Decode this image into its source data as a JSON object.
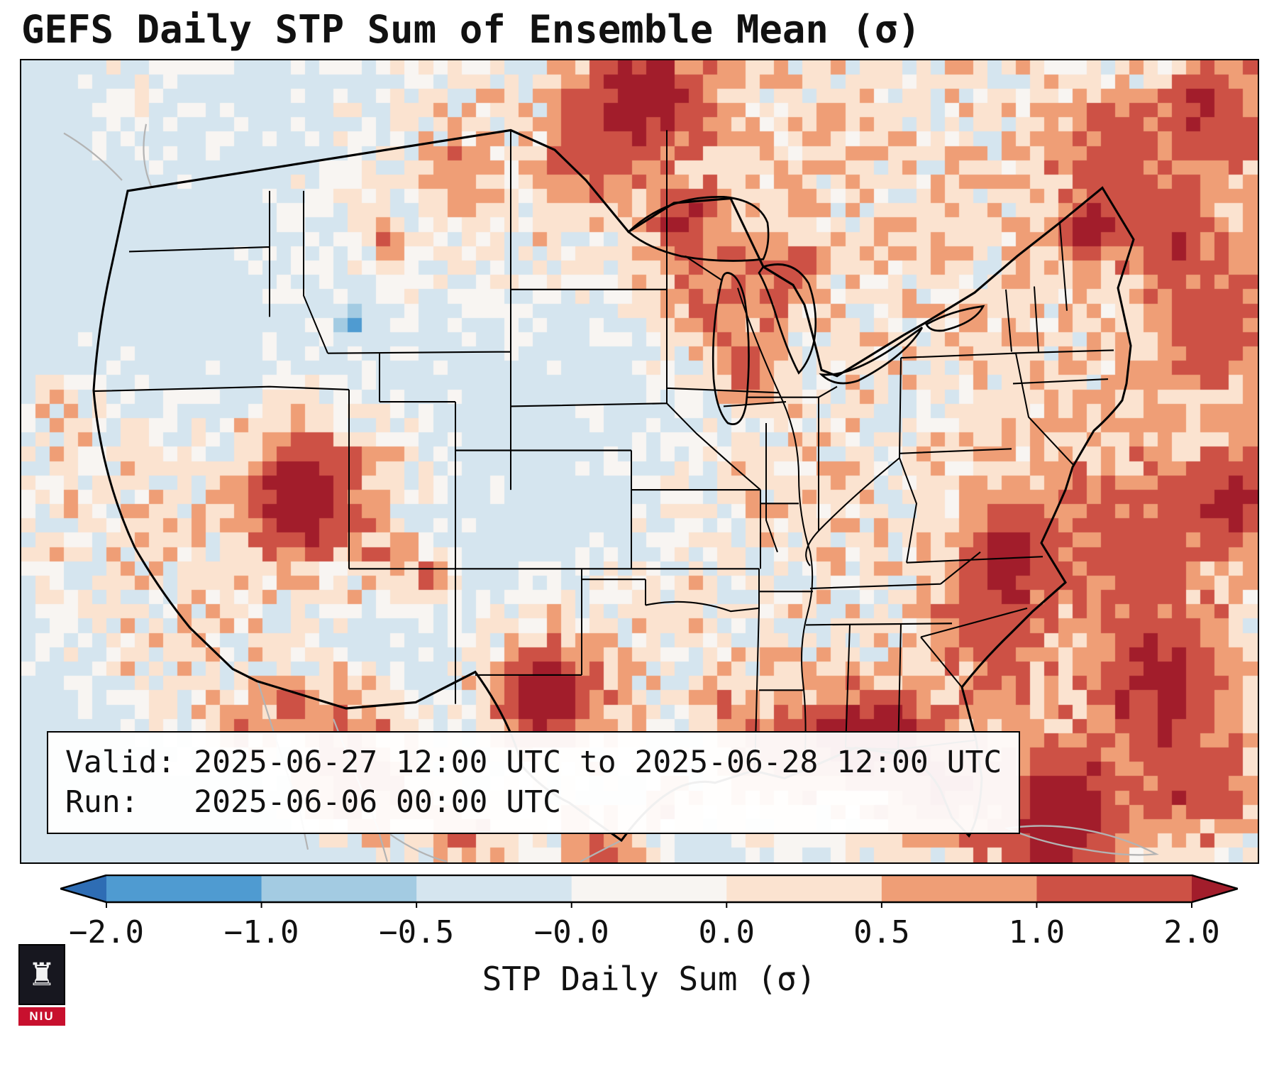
{
  "title": "GEFS Daily STP Sum of Ensemble Mean (σ)",
  "info_box": {
    "valid_line": "Valid: 2025-06-27 12:00 UTC to 2025-06-28 12:00 UTC",
    "run_line": "Run:   2025-06-06 00:00 UTC"
  },
  "logo": {
    "text": "NIU",
    "shield_color": "#17171f",
    "accent_color": "#c8102e",
    "icon": "castle-icon"
  },
  "chart_data": {
    "type": "heatmap",
    "title": "GEFS Daily STP Sum of Ensemble Mean (σ)",
    "region_depicted": "Continental United States and surrounding areas",
    "valid": "2025-06-27 12:00 UTC to 2025-06-28 12:00 UTC",
    "run": "2025-06-06 00:00 UTC",
    "colorbar_label": "STP Daily Sum (σ)",
    "tick_labels": [
      "−2.0",
      "−1.0",
      "−0.5",
      "−0.0",
      "0.0",
      "0.5",
      "1.0",
      "2.0"
    ],
    "boundaries": [
      -2.0,
      -1.0,
      -0.5,
      -0.05,
      0.05,
      0.5,
      1.0,
      2.0
    ],
    "segment_colors": [
      "#4f9bd1",
      "#a3cbe2",
      "#d5e5ef",
      "#f8f5f2",
      "#fbe3d0",
      "#ef9e76",
      "#cd5145"
    ],
    "under_color": "#2e6db4",
    "over_color": "#a21d2b",
    "background_value": -0.2,
    "noise_amp": 0.13,
    "grid": {
      "cols": 87,
      "rows": 56
    },
    "hotspot_format": [
      "fx",
      "fy",
      "radius_frac",
      "amplitude_sigma"
    ],
    "hotspots": [
      [
        0.09,
        0.6,
        0.1,
        0.24
      ],
      [
        0.13,
        0.71,
        0.09,
        0.24
      ],
      [
        0.05,
        0.52,
        0.07,
        0.22
      ],
      [
        0.16,
        0.79,
        0.06,
        0.22
      ],
      [
        0.1,
        0.04,
        0.05,
        0.22
      ],
      [
        0.03,
        0.45,
        0.05,
        0.2
      ],
      [
        0.75,
        0.15,
        0.22,
        0.4
      ],
      [
        0.55,
        0.06,
        0.16,
        0.35
      ],
      [
        0.92,
        0.45,
        0.18,
        0.45
      ],
      [
        0.86,
        0.8,
        0.22,
        0.55
      ],
      [
        0.33,
        0.13,
        0.13,
        0.28
      ],
      [
        0.62,
        0.52,
        0.08,
        0.3
      ],
      [
        0.55,
        0.7,
        0.09,
        0.3
      ],
      [
        0.97,
        0.15,
        0.1,
        0.5
      ],
      [
        0.5,
        0.045,
        0.05,
        2.6
      ],
      [
        0.455,
        0.13,
        0.04,
        1.1
      ],
      [
        0.295,
        0.225,
        0.012,
        1.4
      ],
      [
        0.355,
        0.145,
        0.03,
        0.9
      ],
      [
        0.88,
        0.12,
        0.05,
        1.3
      ],
      [
        0.965,
        0.05,
        0.04,
        1.7
      ],
      [
        0.93,
        0.22,
        0.04,
        1.1
      ],
      [
        0.862,
        0.215,
        0.022,
        2.2
      ],
      [
        0.533,
        0.2,
        0.035,
        1.7
      ],
      [
        0.56,
        0.3,
        0.045,
        1.0
      ],
      [
        0.59,
        0.385,
        0.025,
        1.5
      ],
      [
        0.62,
        0.27,
        0.03,
        1.1
      ],
      [
        0.225,
        0.545,
        0.042,
        2.9
      ],
      [
        0.24,
        0.55,
        0.085,
        0.7
      ],
      [
        0.3,
        0.625,
        0.022,
        0.8
      ],
      [
        0.33,
        0.655,
        0.02,
        1.0
      ],
      [
        0.27,
        0.5,
        0.015,
        0.9
      ],
      [
        0.425,
        0.79,
        0.038,
        2.5
      ],
      [
        0.43,
        0.8,
        0.07,
        0.8
      ],
      [
        0.26,
        0.845,
        0.045,
        1.3
      ],
      [
        0.215,
        0.8,
        0.018,
        1.6
      ],
      [
        0.3,
        0.92,
        0.04,
        1.1
      ],
      [
        0.36,
        0.97,
        0.035,
        1.2
      ],
      [
        0.175,
        0.83,
        0.02,
        1.2
      ],
      [
        0.47,
        0.99,
        0.04,
        1.3
      ],
      [
        0.52,
        0.93,
        0.02,
        0.9
      ],
      [
        0.25,
        0.92,
        0.03,
        1.0
      ],
      [
        0.66,
        0.845,
        0.045,
        1.6
      ],
      [
        0.695,
        0.84,
        0.035,
        2.1
      ],
      [
        0.745,
        0.9,
        0.045,
        2.0
      ],
      [
        0.6,
        0.875,
        0.045,
        1.1
      ],
      [
        0.57,
        0.8,
        0.02,
        0.9
      ],
      [
        0.8,
        0.62,
        0.04,
        1.9
      ],
      [
        0.92,
        0.77,
        0.05,
        2.1
      ],
      [
        0.85,
        0.925,
        0.04,
        2.3
      ],
      [
        0.985,
        0.55,
        0.04,
        2.0
      ],
      [
        0.97,
        0.33,
        0.05,
        1.2
      ],
      [
        0.9,
        0.6,
        0.06,
        1.0
      ],
      [
        0.95,
        0.9,
        0.05,
        1.6
      ],
      [
        0.83,
        0.99,
        0.05,
        1.7
      ],
      [
        0.78,
        0.72,
        0.05,
        1.1
      ],
      [
        0.267,
        0.325,
        0.01,
        -1.3
      ],
      [
        0.715,
        0.43,
        0.016,
        -0.55
      ],
      [
        0.745,
        0.445,
        0.012,
        -0.5
      ],
      [
        0.705,
        0.555,
        0.01,
        -0.5
      ]
    ],
    "legend_position": "bottom",
    "grid_lines": false
  }
}
